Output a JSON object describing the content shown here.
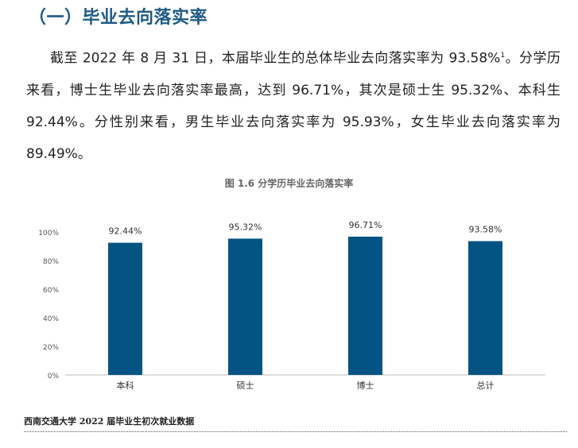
{
  "section_title": "（一）毕业去向落实率",
  "paragraph": {
    "text_before_note": "截至 2022 年 8 月 31 日，本届毕业生的总体毕业去向落实率为 93.58%",
    "footnote_mark": "1",
    "text_after_note": "。分学历来看，博士生毕业去向落实率最高，达到 96.71%，其次是硕士生 95.32%、本科生 92.44%。分性别来看，男生毕业去向落实率为 95.93%，女生毕业去向落实率为 89.49%。"
  },
  "chart_data": {
    "type": "bar",
    "title": "图 1.6 分学历毕业去向落实率",
    "categories": [
      "本科",
      "硕士",
      "博士",
      "总计"
    ],
    "values": [
      92.44,
      95.32,
      96.71,
      93.58
    ],
    "data_labels": [
      "92.44%",
      "95.32%",
      "96.71%",
      "93.58%"
    ],
    "y_ticks": [
      "0%",
      "20%",
      "40%",
      "60%",
      "80%",
      "100%"
    ],
    "ylim": [
      0,
      100
    ],
    "xlabel": "",
    "ylabel": "",
    "grid": false,
    "bar_color": "#045483"
  },
  "footer": "西南交通大学 2022 届毕业生初次就业数据"
}
